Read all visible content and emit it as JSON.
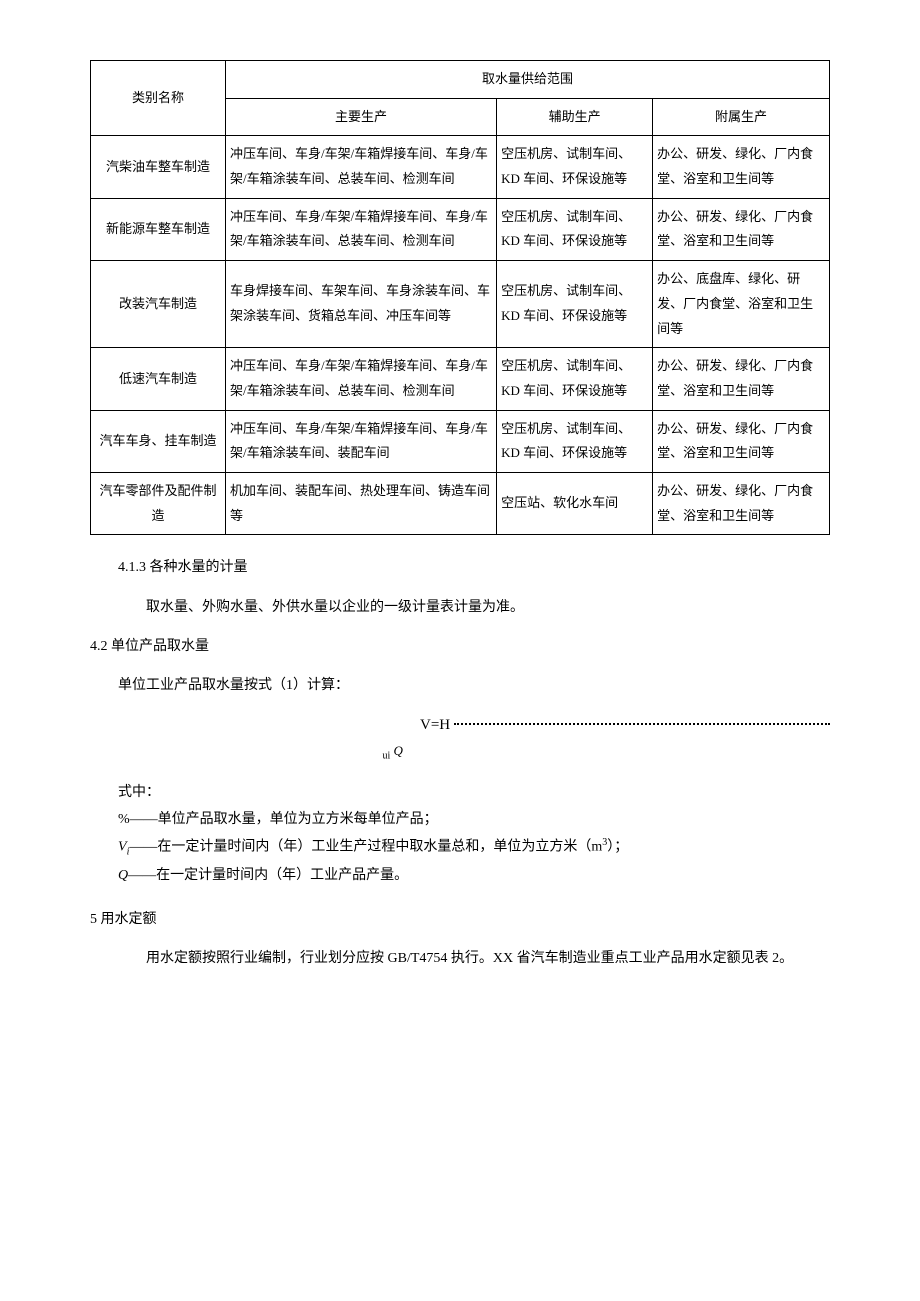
{
  "table": {
    "header": {
      "category": "类别名称",
      "scope": "取水量供给范围",
      "main": "主要生产",
      "aux": "辅助生产",
      "sub": "附属生产"
    },
    "rows": [
      {
        "category": "汽柴油车整车制造",
        "main": "冲压车间、车身/车架/车箱焊接车间、车身/车架/车箱涂装车间、总装车间、检测车间",
        "aux": "空压机房、试制车间、KD 车间、环保设施等",
        "sub": "办公、研发、绿化、厂内食堂、浴室和卫生间等"
      },
      {
        "category": "新能源车整车制造",
        "main": "冲压车间、车身/车架/车箱焊接车间、车身/车架/车箱涂装车间、总装车间、检测车间",
        "aux": "空压机房、试制车间、KD 车间、环保设施等",
        "sub": "办公、研发、绿化、厂内食堂、浴室和卫生间等"
      },
      {
        "category": "改装汽车制造",
        "main": "车身焊接车间、车架车间、车身涂装车间、车架涂装车间、货箱总车间、冲压车间等",
        "aux": "空压机房、试制车间、KD 车间、环保设施等",
        "sub": "办公、底盘库、绿化、研发、厂内食堂、浴室和卫生间等"
      },
      {
        "category": "低速汽车制造",
        "main": "冲压车间、车身/车架/车箱焊接车间、车身/车架/车箱涂装车间、总装车间、检测车间",
        "aux": "空压机房、试制车间、KD 车间、环保设施等",
        "sub": "办公、研发、绿化、厂内食堂、浴室和卫生间等"
      },
      {
        "category": "汽车车身、挂车制造",
        "main": "冲压车间、车身/车架/车箱焊接车间、车身/车架/车箱涂装车间、装配车间",
        "aux": "空压机房、试制车间、KD 车间、环保设施等",
        "sub": "办公、研发、绿化、厂内食堂、浴室和卫生间等"
      },
      {
        "category": "汽车零部件及配件制造",
        "main": "机加车间、装配车间、热处理车间、铸造车间等",
        "aux": "空压站、软化水车间",
        "sub": "办公、研发、绿化、厂内食堂、浴室和卫生间等"
      }
    ]
  },
  "sections": {
    "s413": "4.1.3 各种水量的计量",
    "s413_body": "取水量、外购水量、外供水量以企业的一级计量表计量为准。",
    "s42": "4.2 单位产品取水量",
    "s42_body": "单位工业产品取水量按式（1）计算：",
    "formula": "V=H",
    "formula_sub_u": "u",
    "formula_sub_i": "i",
    "formula_sub_Q": "Q",
    "shizhong": "式中：",
    "def1": "%——单位产品取水量，单位为立方米每单位产品；",
    "def2_sym": "V",
    "def2_sub": "i",
    "def2_rest": "——在一定计量时间内（年）工业生产过程中取水量总和，单位为立方米（m",
    "def2_sup": "3",
    "def2_end": "）；",
    "def3_sym": "Q",
    "def3_rest": "——在一定计量时间内（年）工业产品产量。",
    "s5": "5 用水定额",
    "s5_body": "用水定额按照行业编制，行业划分应按 GB/T4754 执行。XX 省汽车制造业重点工业产品用水定额见表 2。"
  }
}
